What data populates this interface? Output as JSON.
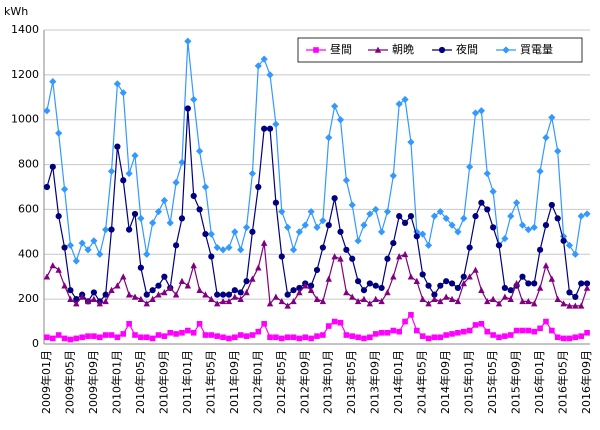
{
  "chart_data": {
    "type": "line",
    "y_label": "kWh",
    "categories": [
      "2009年01月",
      null,
      null,
      null,
      "2009年05月",
      null,
      null,
      null,
      "2009年09月",
      null,
      null,
      null,
      "2010年01月",
      null,
      null,
      null,
      "2010年05月",
      null,
      null,
      null,
      "2010年09月",
      null,
      null,
      null,
      "2011年01月",
      null,
      null,
      null,
      "2011年05月",
      null,
      null,
      null,
      "2011年09月",
      null,
      null,
      null,
      "2012年01月",
      null,
      null,
      null,
      "2012年05月",
      null,
      null,
      null,
      "2012年09月",
      null,
      null,
      null,
      "2013年01月",
      null,
      null,
      null,
      "2013年05月",
      null,
      null,
      null,
      "2013年09月",
      null,
      null,
      null,
      "2014年01月",
      null,
      null,
      null,
      "2014年05月",
      null,
      null,
      null,
      "2014年09月",
      null,
      null,
      null,
      "2015年01月",
      null,
      null,
      null,
      "2015年05月",
      null,
      null,
      null,
      "2015年09月",
      null,
      null,
      null,
      "2016年01月",
      null,
      null,
      null,
      "2016年05月",
      null,
      null,
      null,
      "2016年09月"
    ],
    "series": [
      {
        "name": "昼間",
        "color": "#ff00ff",
        "marker": "square",
        "values": [
          30,
          25,
          40,
          25,
          20,
          25,
          30,
          35,
          35,
          30,
          40,
          40,
          30,
          45,
          90,
          40,
          30,
          30,
          25,
          40,
          35,
          50,
          45,
          50,
          60,
          50,
          90,
          40,
          40,
          35,
          30,
          25,
          30,
          40,
          35,
          40,
          55,
          90,
          30,
          30,
          25,
          30,
          30,
          25,
          30,
          25,
          35,
          40,
          80,
          100,
          95,
          40,
          35,
          30,
          25,
          30,
          45,
          50,
          50,
          60,
          55,
          100,
          130,
          60,
          35,
          25,
          30,
          30,
          40,
          45,
          50,
          55,
          60,
          85,
          90,
          55,
          40,
          30,
          35,
          40,
          60,
          60,
          60,
          55,
          70,
          100,
          60,
          30,
          25,
          25,
          30,
          35,
          50
        ]
      },
      {
        "name": "朝晩",
        "color": "#800080",
        "marker": "triangle",
        "values": [
          300,
          350,
          330,
          260,
          200,
          180,
          210,
          190,
          200,
          180,
          190,
          240,
          260,
          300,
          220,
          210,
          200,
          180,
          200,
          220,
          230,
          250,
          220,
          280,
          260,
          350,
          240,
          220,
          200,
          180,
          190,
          190,
          210,
          200,
          230,
          290,
          340,
          450,
          180,
          210,
          190,
          170,
          190,
          230,
          260,
          240,
          200,
          190,
          290,
          390,
          380,
          230,
          210,
          190,
          200,
          180,
          200,
          190,
          230,
          300,
          390,
          400,
          300,
          280,
          200,
          180,
          200,
          190,
          210,
          200,
          190,
          270,
          300,
          330,
          240,
          190,
          200,
          180,
          210,
          200,
          270,
          190,
          190,
          180,
          250,
          350,
          290,
          200,
          180,
          170,
          170,
          170,
          250
        ]
      },
      {
        "name": "夜間",
        "color": "#000080",
        "marker": "circle",
        "values": [
          700,
          790,
          570,
          430,
          240,
          200,
          220,
          190,
          230,
          190,
          220,
          510,
          880,
          730,
          510,
          580,
          340,
          220,
          240,
          260,
          300,
          250,
          440,
          560,
          1050,
          660,
          600,
          490,
          390,
          220,
          220,
          220,
          240,
          230,
          280,
          500,
          700,
          960,
          960,
          630,
          390,
          220,
          240,
          250,
          270,
          260,
          330,
          430,
          530,
          650,
          500,
          420,
          380,
          280,
          240,
          270,
          260,
          250,
          380,
          450,
          570,
          540,
          570,
          480,
          310,
          260,
          220,
          260,
          280,
          270,
          250,
          300,
          430,
          570,
          630,
          600,
          520,
          440,
          250,
          240,
          260,
          300,
          270,
          270,
          420,
          530,
          620,
          560,
          460,
          230,
          210,
          270,
          270
        ]
      },
      {
        "name": "買電量",
        "color": "#3399ff",
        "marker": "diamond",
        "values": [
          1040,
          1170,
          940,
          690,
          440,
          370,
          450,
          420,
          460,
          400,
          510,
          770,
          1160,
          1120,
          760,
          840,
          560,
          400,
          540,
          590,
          640,
          540,
          720,
          810,
          1350,
          1090,
          860,
          700,
          490,
          430,
          420,
          430,
          500,
          420,
          520,
          760,
          1240,
          1270,
          1200,
          980,
          590,
          520,
          420,
          500,
          530,
          590,
          520,
          550,
          920,
          1060,
          1000,
          730,
          620,
          460,
          530,
          580,
          600,
          500,
          590,
          750,
          1070,
          1090,
          900,
          500,
          490,
          440,
          570,
          590,
          560,
          530,
          500,
          560,
          790,
          1030,
          1040,
          760,
          680,
          440,
          470,
          570,
          630,
          530,
          510,
          520,
          770,
          920,
          1010,
          860,
          480,
          440,
          400,
          570,
          580
        ]
      }
    ],
    "ylim": [
      0,
      1400
    ],
    "yticks": [
      0,
      200,
      400,
      600,
      800,
      1000,
      1200,
      1400
    ],
    "grid": true,
    "legend": "top-right"
  }
}
